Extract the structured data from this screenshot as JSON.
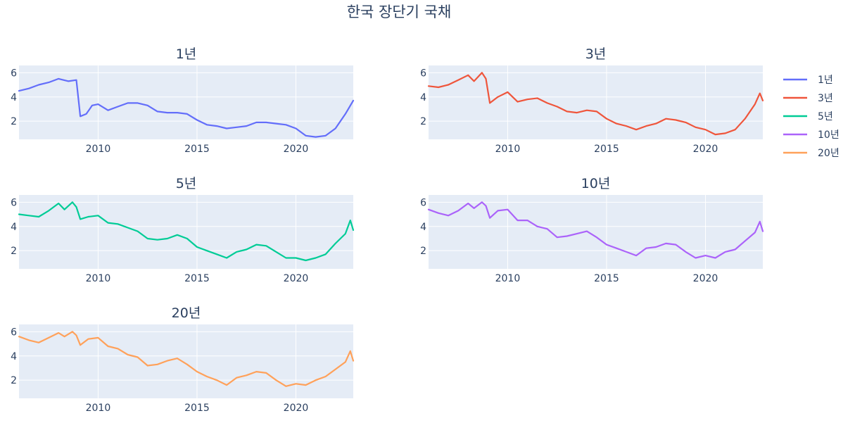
{
  "title": "한국 장단기 국채",
  "chart_data": {
    "type": "line",
    "title": "한국 장단기 국채",
    "xlim": [
      2006.0,
      2022.9
    ],
    "ylim": [
      0.5,
      6.6
    ],
    "x_ticks": [
      2010,
      2015,
      2020
    ],
    "x_tick_labels": [
      "2010",
      "2015",
      "2020"
    ],
    "y_ticks": [
      2,
      4,
      6
    ],
    "y_tick_labels": [
      "2",
      "4",
      "6"
    ],
    "grid": true,
    "legend": "right",
    "series": [
      {
        "name": "1년",
        "subplot_title": "1년",
        "color": "#636efa",
        "x": [
          2006.0,
          2006.5,
          2007.0,
          2007.5,
          2008.0,
          2008.5,
          2008.9,
          2009.1,
          2009.4,
          2009.7,
          2010.0,
          2010.5,
          2011.0,
          2011.5,
          2012.0,
          2012.5,
          2013.0,
          2013.5,
          2014.0,
          2014.5,
          2015.0,
          2015.5,
          2016.0,
          2016.5,
          2017.0,
          2017.5,
          2018.0,
          2018.5,
          2019.0,
          2019.5,
          2020.0,
          2020.5,
          2021.0,
          2021.5,
          2022.0,
          2022.5,
          2022.9
        ],
        "values": [
          4.5,
          4.7,
          5.0,
          5.2,
          5.5,
          5.3,
          5.4,
          2.4,
          2.6,
          3.3,
          3.4,
          2.9,
          3.2,
          3.5,
          3.5,
          3.3,
          2.8,
          2.7,
          2.7,
          2.6,
          2.1,
          1.7,
          1.6,
          1.4,
          1.5,
          1.6,
          1.9,
          1.9,
          1.8,
          1.7,
          1.4,
          0.8,
          0.7,
          0.8,
          1.4,
          2.6,
          3.7
        ]
      },
      {
        "name": "3년",
        "subplot_title": "3년",
        "color": "#ef553b",
        "x": [
          2006.0,
          2006.5,
          2007.0,
          2007.5,
          2008.0,
          2008.3,
          2008.7,
          2008.9,
          2009.1,
          2009.5,
          2010.0,
          2010.5,
          2011.0,
          2011.5,
          2012.0,
          2012.5,
          2013.0,
          2013.5,
          2014.0,
          2014.5,
          2015.0,
          2015.5,
          2016.0,
          2016.5,
          2017.0,
          2017.5,
          2018.0,
          2018.5,
          2019.0,
          2019.5,
          2020.0,
          2020.5,
          2021.0,
          2021.5,
          2022.0,
          2022.5,
          2022.75,
          2022.9
        ],
        "values": [
          4.9,
          4.8,
          5.0,
          5.4,
          5.8,
          5.3,
          6.0,
          5.5,
          3.5,
          4.0,
          4.4,
          3.6,
          3.8,
          3.9,
          3.5,
          3.2,
          2.8,
          2.7,
          2.9,
          2.8,
          2.2,
          1.8,
          1.6,
          1.3,
          1.6,
          1.8,
          2.2,
          2.1,
          1.9,
          1.5,
          1.3,
          0.9,
          1.0,
          1.3,
          2.2,
          3.4,
          4.3,
          3.7
        ]
      },
      {
        "name": "5년",
        "subplot_title": "5년",
        "color": "#00cc96",
        "x": [
          2006.0,
          2006.5,
          2007.0,
          2007.5,
          2008.0,
          2008.3,
          2008.7,
          2008.9,
          2009.1,
          2009.5,
          2010.0,
          2010.5,
          2011.0,
          2011.5,
          2012.0,
          2012.5,
          2013.0,
          2013.5,
          2014.0,
          2014.5,
          2015.0,
          2015.5,
          2016.0,
          2016.5,
          2017.0,
          2017.5,
          2018.0,
          2018.5,
          2019.0,
          2019.5,
          2020.0,
          2020.5,
          2021.0,
          2021.5,
          2022.0,
          2022.5,
          2022.75,
          2022.9
        ],
        "values": [
          5.0,
          4.9,
          4.8,
          5.3,
          5.9,
          5.4,
          6.0,
          5.6,
          4.6,
          4.8,
          4.9,
          4.3,
          4.2,
          3.9,
          3.6,
          3.0,
          2.9,
          3.0,
          3.3,
          3.0,
          2.3,
          2.0,
          1.7,
          1.4,
          1.9,
          2.1,
          2.5,
          2.4,
          1.9,
          1.4,
          1.4,
          1.2,
          1.4,
          1.7,
          2.6,
          3.4,
          4.5,
          3.7
        ]
      },
      {
        "name": "10년",
        "subplot_title": "10년",
        "color": "#ab63fa",
        "x": [
          2006.0,
          2006.5,
          2007.0,
          2007.5,
          2008.0,
          2008.3,
          2008.7,
          2008.9,
          2009.1,
          2009.5,
          2010.0,
          2010.5,
          2011.0,
          2011.5,
          2012.0,
          2012.5,
          2013.0,
          2013.5,
          2014.0,
          2014.5,
          2015.0,
          2015.5,
          2016.0,
          2016.5,
          2017.0,
          2017.5,
          2018.0,
          2018.5,
          2019.0,
          2019.5,
          2020.0,
          2020.5,
          2021.0,
          2021.5,
          2022.0,
          2022.5,
          2022.75,
          2022.9
        ],
        "values": [
          5.4,
          5.1,
          4.9,
          5.3,
          5.9,
          5.5,
          6.0,
          5.7,
          4.7,
          5.3,
          5.4,
          4.5,
          4.5,
          4.0,
          3.8,
          3.1,
          3.2,
          3.4,
          3.6,
          3.1,
          2.5,
          2.2,
          1.9,
          1.6,
          2.2,
          2.3,
          2.6,
          2.5,
          1.9,
          1.4,
          1.6,
          1.4,
          1.9,
          2.1,
          2.8,
          3.5,
          4.4,
          3.6
        ]
      },
      {
        "name": "20년",
        "subplot_title": "20년",
        "color": "#ffa15a",
        "x": [
          2006.0,
          2006.5,
          2007.0,
          2007.5,
          2008.0,
          2008.3,
          2008.7,
          2008.9,
          2009.1,
          2009.5,
          2010.0,
          2010.5,
          2011.0,
          2011.5,
          2012.0,
          2012.5,
          2013.0,
          2013.5,
          2014.0,
          2014.5,
          2015.0,
          2015.5,
          2016.0,
          2016.5,
          2017.0,
          2017.5,
          2018.0,
          2018.5,
          2019.0,
          2019.5,
          2020.0,
          2020.5,
          2021.0,
          2021.5,
          2022.0,
          2022.5,
          2022.75,
          2022.9
        ],
        "values": [
          5.6,
          5.3,
          5.1,
          5.5,
          5.9,
          5.6,
          6.0,
          5.7,
          4.9,
          5.4,
          5.5,
          4.8,
          4.6,
          4.1,
          3.9,
          3.2,
          3.3,
          3.6,
          3.8,
          3.3,
          2.7,
          2.3,
          2.0,
          1.6,
          2.2,
          2.4,
          2.7,
          2.6,
          2.0,
          1.5,
          1.7,
          1.6,
          2.0,
          2.3,
          2.9,
          3.5,
          4.4,
          3.6
        ]
      }
    ]
  }
}
